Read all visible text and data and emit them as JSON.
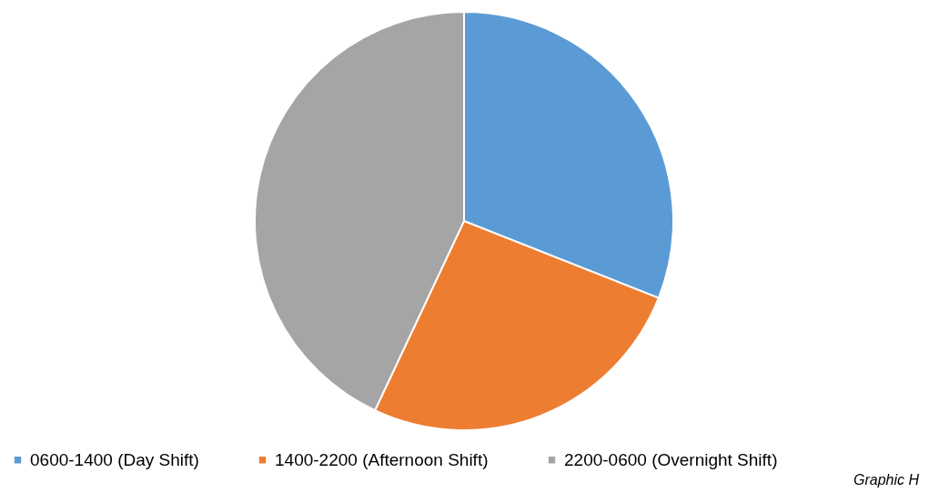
{
  "chart_data": {
    "type": "pie",
    "categories": [
      "0600-1400 (Day Shift)",
      "1400-2200 (Afternoon Shift)",
      "2200-0600 (Overnight Shift)"
    ],
    "values": [
      31,
      26,
      43
    ],
    "colors": [
      "#5b9bd5",
      "#ed7d31",
      "#a5a5a5"
    ],
    "legend": "bottom",
    "annotations": [
      "Graphic H"
    ]
  }
}
